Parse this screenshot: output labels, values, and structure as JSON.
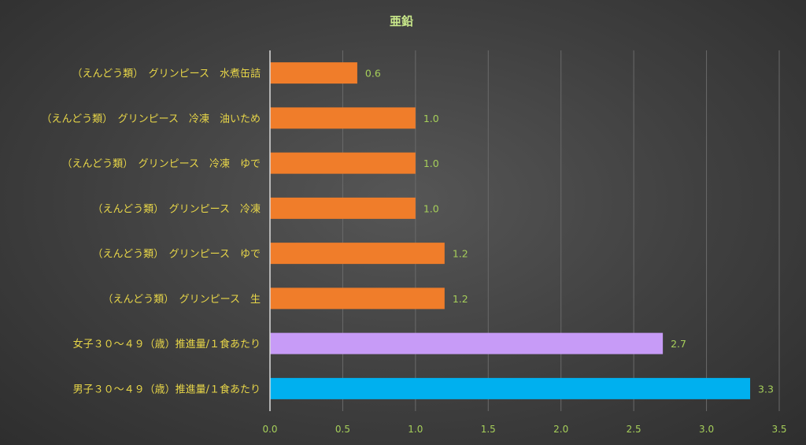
{
  "chart_data": {
    "type": "bar",
    "orientation": "horizontal",
    "title": "亜鉛",
    "categories": [
      "（えんどう類）　グリンピース　水煮缶詰",
      "（えんどう類）　グリンピース　冷凍　油いため",
      "（えんどう類）　グリンピース　冷凍　ゆで",
      "（えんどう類）　グリンピース　冷凍",
      "（えんどう類）　グリンピース　ゆで",
      "（えんどう類）　グリンピース　生",
      "女子３０～４９（歳）推進量/１食あたり",
      "男子３０～４９（歳）推進量/１食あたり"
    ],
    "values": [
      0.6,
      1.0,
      1.0,
      1.0,
      1.2,
      1.2,
      2.7,
      3.3
    ],
    "value_labels": [
      "0.6",
      "1.0",
      "1.0",
      "1.0",
      "1.2",
      "1.2",
      "2.7",
      "3.3"
    ],
    "bar_colors": [
      "#f07d2a",
      "#f07d2a",
      "#f07d2a",
      "#f07d2a",
      "#f07d2a",
      "#f07d2a",
      "#c79bf7",
      "#00b0ef"
    ],
    "xlim": [
      0,
      3.5
    ],
    "xticks": [
      "0.0",
      "0.5",
      "1.0",
      "1.5",
      "2.0",
      "2.5",
      "3.0",
      "3.5"
    ],
    "xtick_values": [
      0,
      0.5,
      1.0,
      1.5,
      2.0,
      2.5,
      3.0,
      3.5
    ],
    "grid": true,
    "legend": "none"
  }
}
